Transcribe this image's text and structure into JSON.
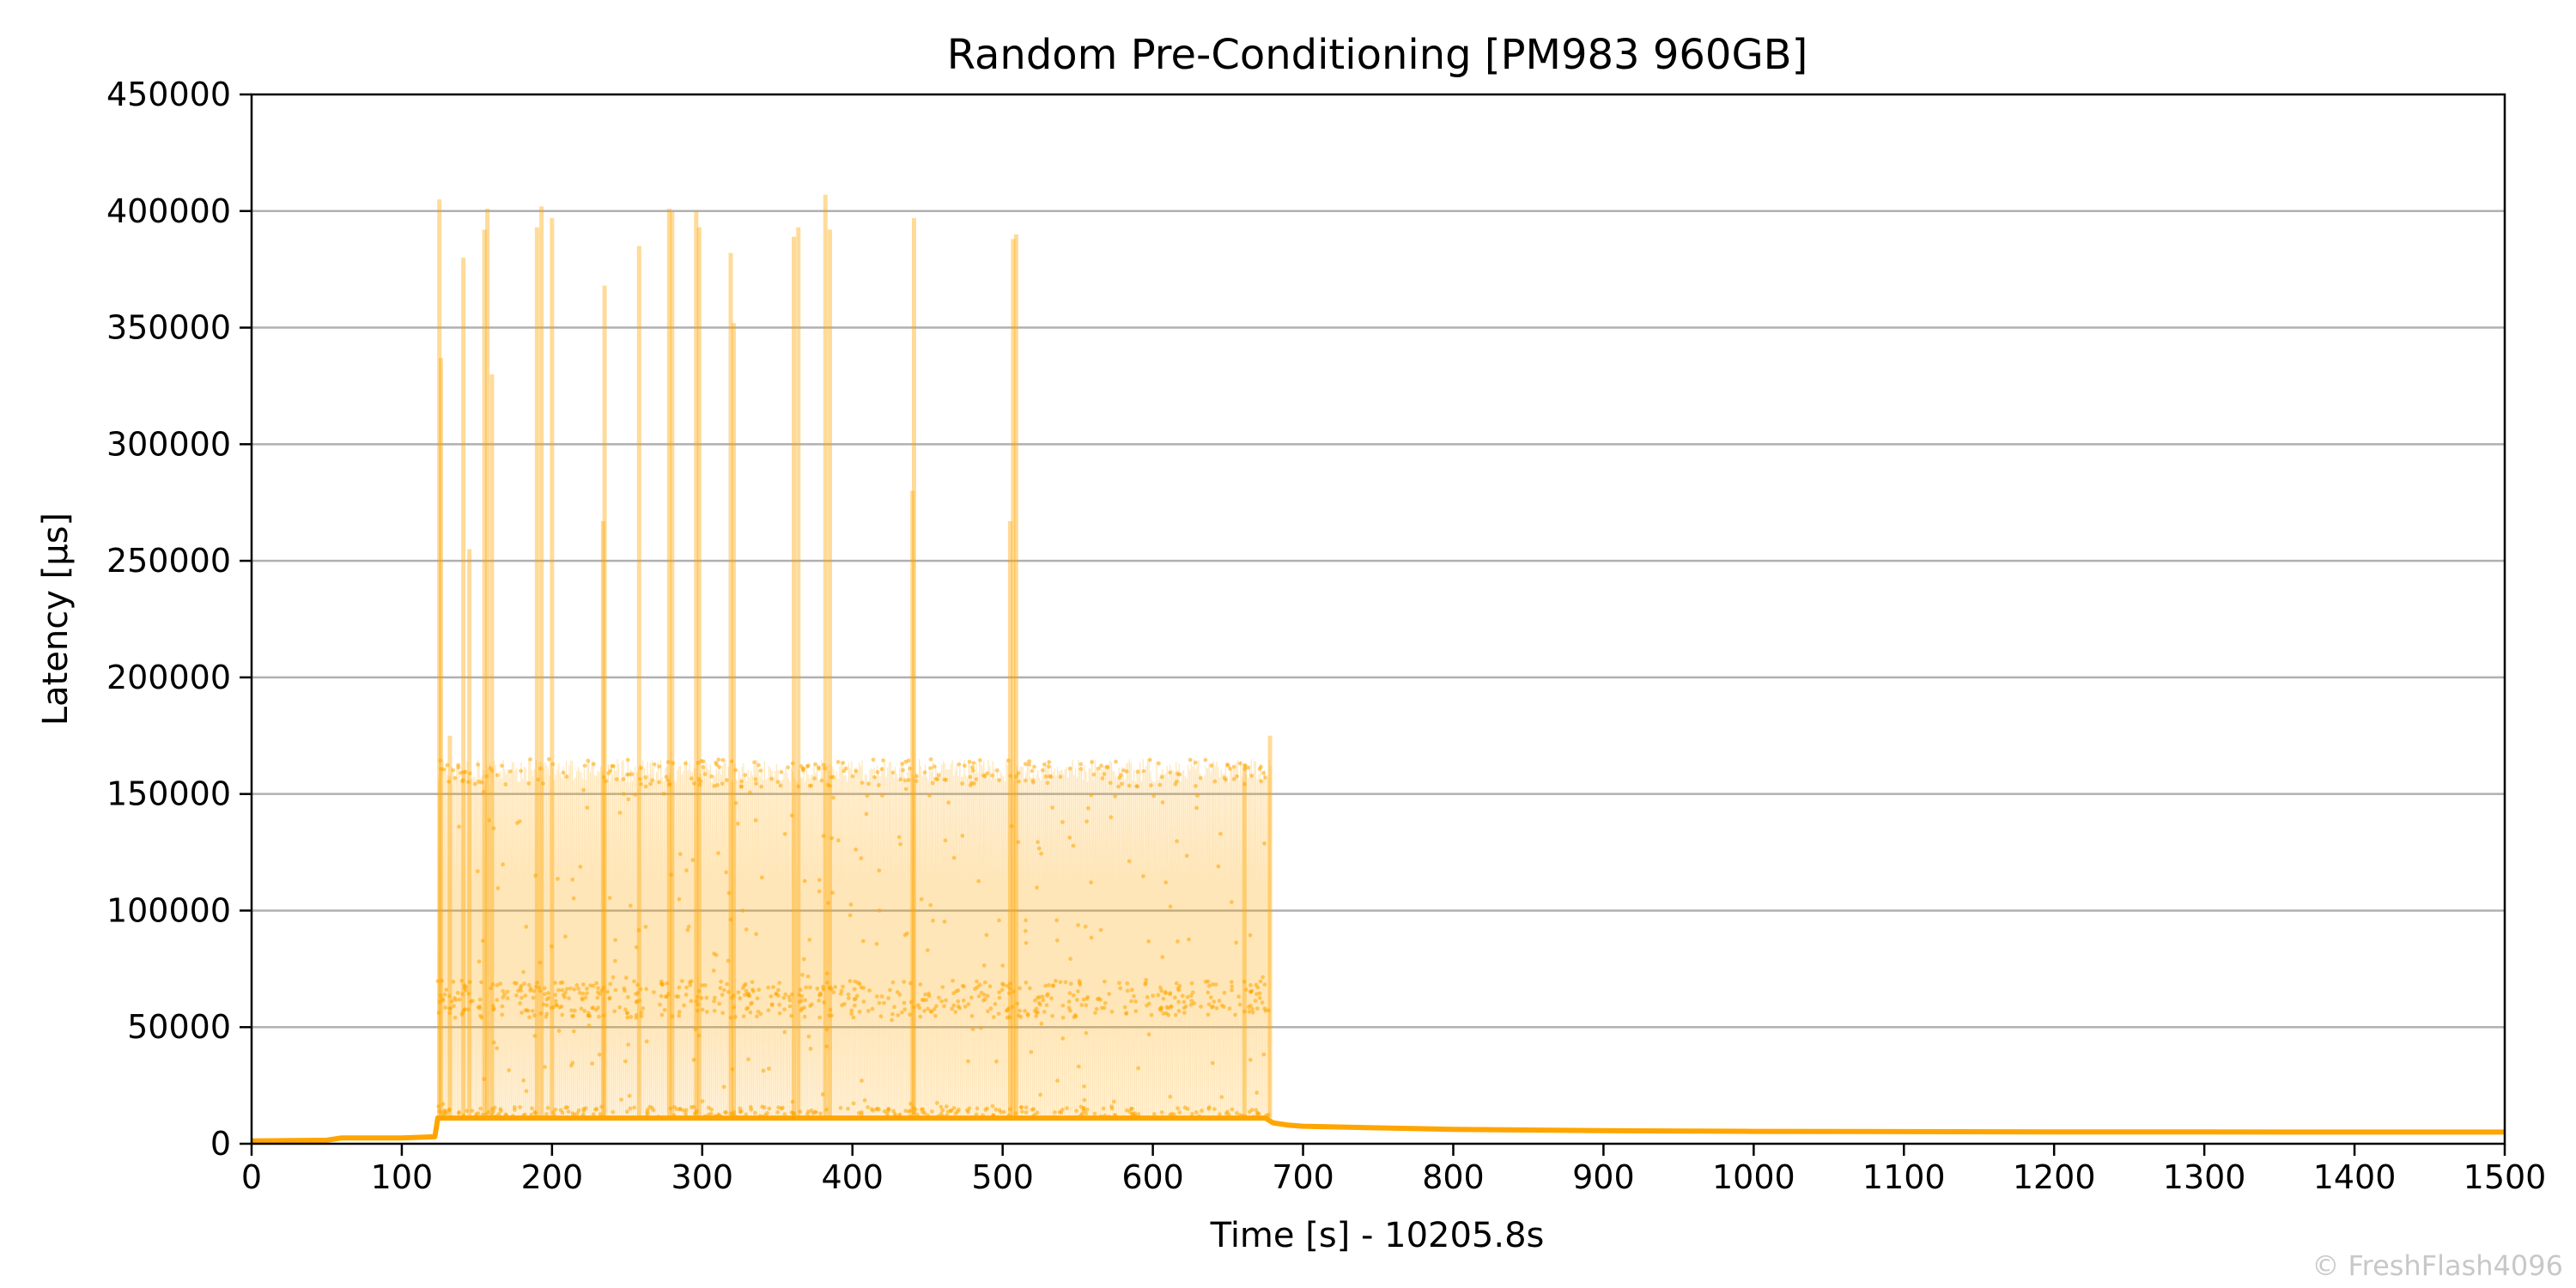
{
  "chart_data": {
    "type": "line",
    "title": "Random Pre-Conditioning [PM983 960GB]",
    "xlabel": "Time [s] - 10205.8s",
    "ylabel": "Latency [µs]",
    "xlim": [
      0,
      1500
    ],
    "ylim": [
      0,
      450000
    ],
    "xticks": [
      0,
      100,
      200,
      300,
      400,
      500,
      600,
      700,
      800,
      900,
      1000,
      1100,
      1200,
      1300,
      1400,
      1500
    ],
    "yticks": [
      0,
      50000,
      100000,
      150000,
      200000,
      250000,
      300000,
      350000,
      400000,
      450000
    ],
    "grid": "horizontal",
    "series_color": "#ffa500",
    "series": [
      {
        "description": "latency samples",
        "baseline": [
          [
            0,
            1200
          ],
          [
            50,
            1500
          ],
          [
            60,
            2500
          ],
          [
            100,
            2500
          ],
          [
            122,
            3000
          ],
          [
            124,
            11000
          ],
          [
            675,
            11000
          ],
          [
            680,
            9000
          ],
          [
            690,
            8000
          ],
          [
            700,
            7500
          ],
          [
            750,
            6800
          ],
          [
            800,
            6200
          ],
          [
            900,
            5600
          ],
          [
            1000,
            5300
          ],
          [
            1100,
            5200
          ],
          [
            1200,
            5100
          ],
          [
            1300,
            5100
          ],
          [
            1400,
            5000
          ],
          [
            1500,
            5000
          ]
        ],
        "band": {
          "x_start": 124,
          "x_end": 678,
          "low": 11000,
          "mid": 62000,
          "high": 165000
        },
        "spikes": [
          [
            125,
            405000
          ],
          [
            126,
            337000
          ],
          [
            132,
            175000
          ],
          [
            141,
            380000
          ],
          [
            145,
            255000
          ],
          [
            155,
            392000
          ],
          [
            157,
            401000
          ],
          [
            160,
            330000
          ],
          [
            190,
            393000
          ],
          [
            193,
            402000
          ],
          [
            200,
            397000
          ],
          [
            234,
            267000
          ],
          [
            235,
            368000
          ],
          [
            258,
            385000
          ],
          [
            278,
            401000
          ],
          [
            280,
            400000
          ],
          [
            296,
            400000
          ],
          [
            298,
            393000
          ],
          [
            319,
            382000
          ],
          [
            321,
            352000
          ],
          [
            361,
            389000
          ],
          [
            364,
            393000
          ],
          [
            382,
            407000
          ],
          [
            385,
            392000
          ],
          [
            440,
            280000
          ],
          [
            441,
            397000
          ],
          [
            505,
            267000
          ],
          [
            507,
            388000
          ],
          [
            509,
            390000
          ],
          [
            661,
            163000
          ],
          [
            678,
            175000
          ]
        ]
      }
    ],
    "watermark": "© FreshFlash4096"
  }
}
